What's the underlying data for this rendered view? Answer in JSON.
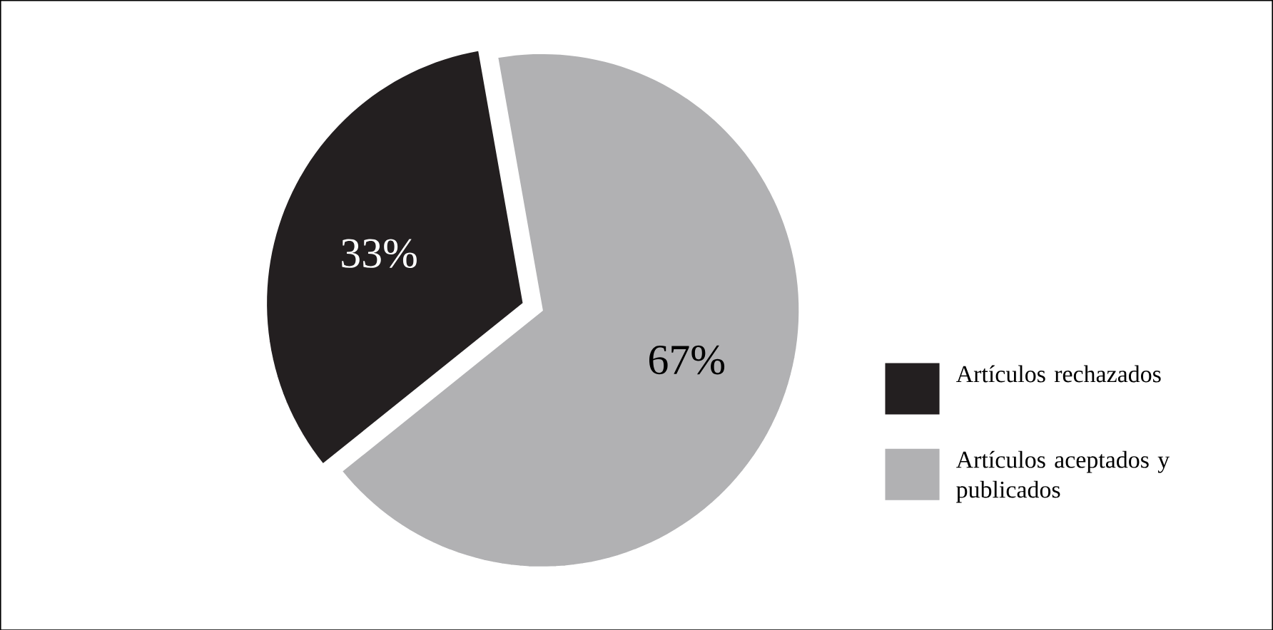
{
  "chart_data": {
    "type": "pie",
    "categories": [
      "Artículos rechazados",
      "Artículos aceptados y publicados"
    ],
    "values": [
      33,
      67
    ],
    "colors": [
      "#231f20",
      "#b1b1b3"
    ],
    "value_labels": [
      "33%",
      "67%"
    ],
    "legend": "right"
  }
}
